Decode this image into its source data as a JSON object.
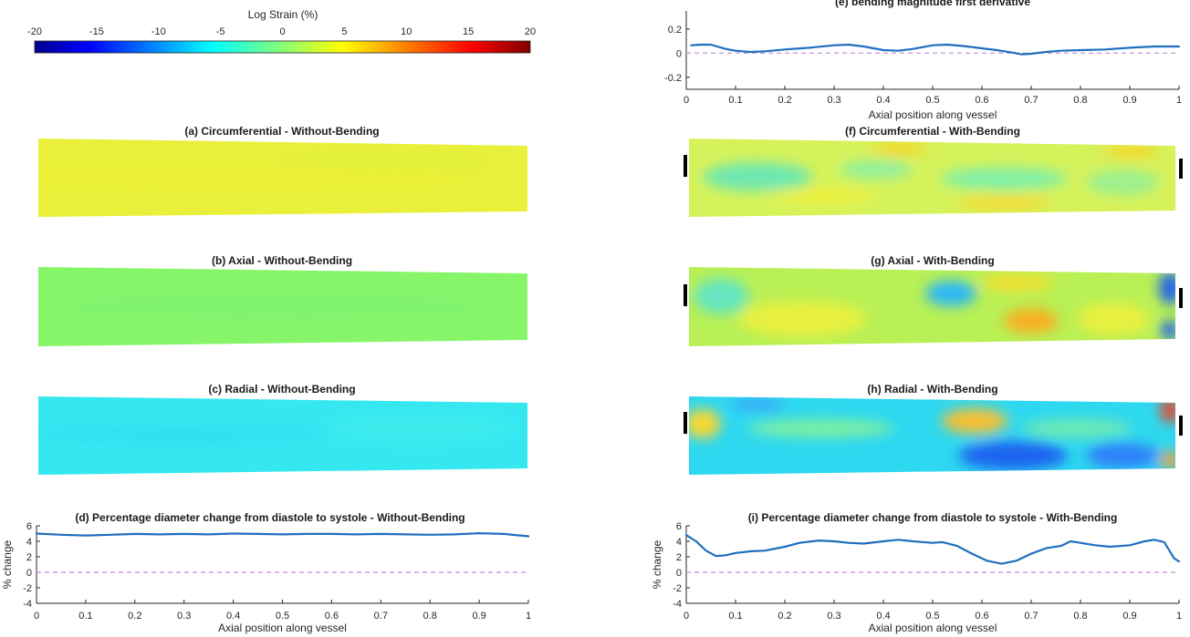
{
  "colorbar": {
    "label": "Log Strain (%)",
    "min": -20,
    "max": 20,
    "ticks": [
      -20,
      -15,
      -10,
      -5,
      0,
      5,
      10,
      15,
      20
    ],
    "tick_labels": [
      "-20",
      "-15",
      "-10",
      "-5",
      "0",
      "5",
      "10",
      "15",
      "20"
    ],
    "colormap": "jet",
    "stops": [
      "#00008f",
      "#0000ff",
      "#00ffff",
      "#ffff00",
      "#ff0000",
      "#800000"
    ]
  },
  "panels": {
    "a": {
      "title": "(a) Circumferential - Without-Bending",
      "base": "#e8f03a"
    },
    "b": {
      "title": "(b) Axial - Without-Bending",
      "base": "#86f56a"
    },
    "c": {
      "title": "(c) Radial - Without-Bending",
      "base": "#35e8f0"
    },
    "f": {
      "title": "(f) Circumferential - With-Bending",
      "base": "#d6f25a"
    },
    "g": {
      "title": "(g) Axial - With-Bending",
      "base": "#b8f055"
    },
    "h": {
      "title": "(h) Radial - With-Bending",
      "base": "#2ed8f0"
    }
  },
  "chart_data": [
    {
      "id": "e",
      "type": "line",
      "title": "(e) bending magnitude first derivative",
      "xlabel": "Axial position along vessel",
      "ylabel": "",
      "xlim": [
        0,
        1
      ],
      "ylim": [
        -0.3,
        0.35
      ],
      "xticks": [
        0,
        0.1,
        0.2,
        0.3,
        0.4,
        0.5,
        0.6,
        0.7,
        0.8,
        0.9,
        1
      ],
      "xtick_labels": [
        "0",
        "0.1",
        "0.2",
        "0.3",
        "0.4",
        "0.5",
        "0.6",
        "0.7",
        "0.8",
        "0.9",
        "1"
      ],
      "yticks": [
        -0.2,
        0,
        0.2
      ],
      "ytick_labels": [
        "-0.2",
        "0",
        "0.2"
      ],
      "grid": false,
      "reference_line": {
        "y": 0,
        "style": "dashed",
        "color": "#c8a0d8"
      },
      "series": [
        {
          "color": "#1f6fbf",
          "x": [
            0.01,
            0.03,
            0.05,
            0.08,
            0.1,
            0.13,
            0.16,
            0.2,
            0.25,
            0.3,
            0.33,
            0.36,
            0.4,
            0.43,
            0.46,
            0.5,
            0.53,
            0.56,
            0.6,
            0.63,
            0.66,
            0.68,
            0.7,
            0.73,
            0.76,
            0.8,
            0.85,
            0.9,
            0.95,
            1.0
          ],
          "y": [
            0.065,
            0.07,
            0.07,
            0.035,
            0.02,
            0.01,
            0.015,
            0.03,
            0.045,
            0.065,
            0.07,
            0.055,
            0.025,
            0.02,
            0.035,
            0.065,
            0.07,
            0.06,
            0.04,
            0.025,
            0.005,
            -0.01,
            -0.005,
            0.01,
            0.02,
            0.025,
            0.03,
            0.045,
            0.055,
            0.055
          ]
        }
      ]
    },
    {
      "id": "d",
      "type": "line",
      "title": "(d) Percentage diameter change from diastole to systole - Without-Bending",
      "xlabel": "Axial position along vessel",
      "ylabel": "% change",
      "xlim": [
        0,
        1
      ],
      "ylim": [
        -4,
        6
      ],
      "xticks": [
        0,
        0.1,
        0.2,
        0.3,
        0.4,
        0.5,
        0.6,
        0.7,
        0.8,
        0.9,
        1
      ],
      "xtick_labels": [
        "0",
        "0.1",
        "0.2",
        "0.3",
        "0.4",
        "0.5",
        "0.6",
        "0.7",
        "0.8",
        "0.9",
        "1"
      ],
      "yticks": [
        -4,
        -2,
        0,
        2,
        4,
        6
      ],
      "ytick_labels": [
        "-4",
        "-2",
        "0",
        "2",
        "4",
        "6"
      ],
      "grid": false,
      "reference_line": {
        "y": 0,
        "style": "dashed",
        "color": "#c8a0d8"
      },
      "series": [
        {
          "color": "#1f6fbf",
          "x": [
            0,
            0.05,
            0.1,
            0.15,
            0.2,
            0.25,
            0.3,
            0.35,
            0.4,
            0.45,
            0.5,
            0.55,
            0.6,
            0.65,
            0.7,
            0.75,
            0.8,
            0.85,
            0.9,
            0.95,
            1.0
          ],
          "y": [
            5.0,
            4.85,
            4.75,
            4.85,
            4.95,
            4.9,
            4.95,
            4.9,
            5.0,
            4.95,
            4.9,
            4.95,
            4.95,
            4.9,
            4.95,
            4.9,
            4.85,
            4.9,
            5.05,
            4.95,
            4.65
          ]
        }
      ]
    },
    {
      "id": "i",
      "type": "line",
      "title": "(i) Percentage diameter change from diastole to systole - With-Bending",
      "xlabel": "Axial position along vessel",
      "ylabel": "% change",
      "xlim": [
        0,
        1
      ],
      "ylim": [
        -4,
        6
      ],
      "xticks": [
        0,
        0.1,
        0.2,
        0.3,
        0.4,
        0.5,
        0.6,
        0.7,
        0.8,
        0.9,
        1
      ],
      "xtick_labels": [
        "0",
        "0.1",
        "0.2",
        "0.3",
        "0.4",
        "0.5",
        "0.6",
        "0.7",
        "0.8",
        "0.9",
        "1"
      ],
      "yticks": [
        -4,
        -2,
        0,
        2,
        4,
        6
      ],
      "ytick_labels": [
        "-4",
        "-2",
        "0",
        "2",
        "4",
        "6"
      ],
      "grid": false,
      "reference_line": {
        "y": 0,
        "style": "dashed",
        "color": "#c8a0d8"
      },
      "series": [
        {
          "color": "#1f6fbf",
          "x": [
            0,
            0.02,
            0.04,
            0.06,
            0.08,
            0.1,
            0.13,
            0.16,
            0.2,
            0.23,
            0.27,
            0.3,
            0.33,
            0.36,
            0.4,
            0.43,
            0.46,
            0.5,
            0.52,
            0.55,
            0.58,
            0.61,
            0.64,
            0.67,
            0.7,
            0.73,
            0.76,
            0.78,
            0.8,
            0.83,
            0.86,
            0.9,
            0.93,
            0.95,
            0.97,
            0.99,
            1.0
          ],
          "y": [
            4.8,
            4.0,
            2.8,
            2.1,
            2.2,
            2.5,
            2.7,
            2.8,
            3.3,
            3.8,
            4.1,
            4.0,
            3.8,
            3.7,
            4.0,
            4.2,
            4.0,
            3.8,
            3.9,
            3.4,
            2.4,
            1.5,
            1.1,
            1.5,
            2.4,
            3.1,
            3.4,
            4.0,
            3.8,
            3.5,
            3.3,
            3.5,
            4.0,
            4.2,
            3.9,
            1.8,
            1.4
          ]
        }
      ]
    }
  ]
}
